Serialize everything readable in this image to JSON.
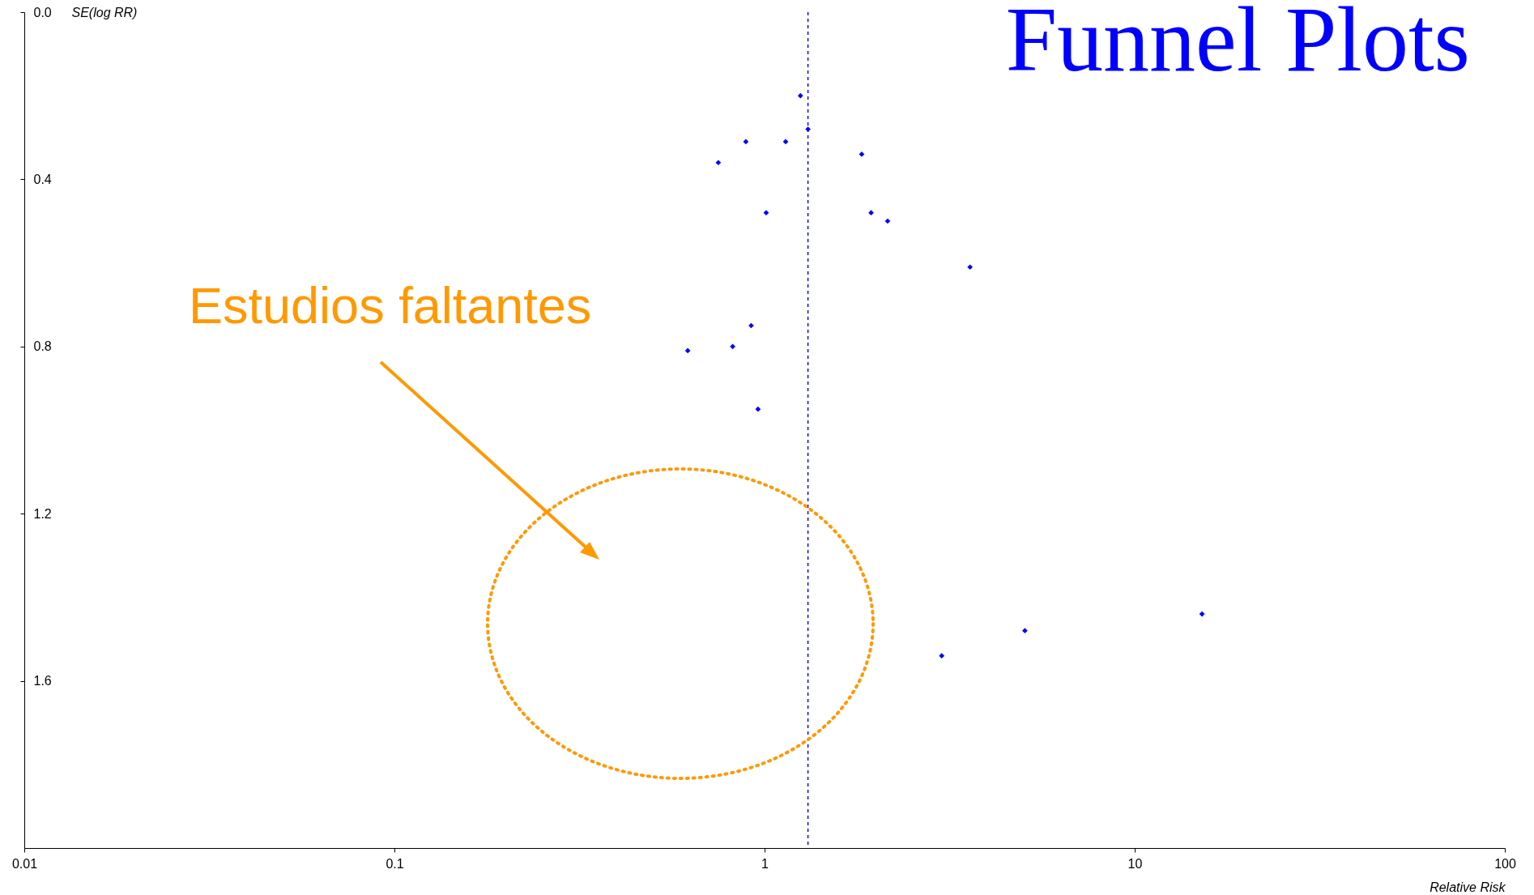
{
  "chart_data": {
    "type": "scatter",
    "title": "Funnel Plots",
    "xlabel": "Relative Risk",
    "ylabel": "SE(log RR)",
    "annotations": [
      "Estudios faltantes"
    ],
    "log": "x",
    "grid": false,
    "marker": "diamond",
    "legend": false,
    "xlim": [
      0.01,
      100
    ],
    "xticks": [
      0.01,
      0.1,
      1,
      10,
      100
    ],
    "ylim": [
      2.0,
      0
    ],
    "yticks": [
      {
        "value": 0,
        "label": "0.0"
      },
      {
        "value": 0.4,
        "label": "0.4"
      },
      {
        "value": 0.8,
        "label": "0.8"
      },
      {
        "value": 1.2,
        "label": "1.2"
      },
      {
        "value": 1.6,
        "label": "1.6"
      }
    ],
    "x": [
      1.25,
      1.31,
      1.14,
      0.89,
      0.75,
      1.83,
      1.01,
      1.94,
      2.15,
      3.59,
      0.92,
      0.82,
      0.62,
      0.96,
      3.01,
      5.05,
      15.2
    ],
    "series": [
      {
        "color": "#0000ff",
        "values": [
          0.2,
          0.28,
          0.31,
          0.31,
          0.36,
          0.34,
          0.48,
          0.48,
          0.5,
          0.61,
          0.75,
          0.8,
          0.81,
          0.95,
          1.54,
          1.48,
          1.44
        ]
      }
    ],
    "ref_lines": [
      {
        "axis": "x",
        "value": 1.31,
        "color": "#0000ff",
        "line_style": "dashed"
      }
    ]
  }
}
